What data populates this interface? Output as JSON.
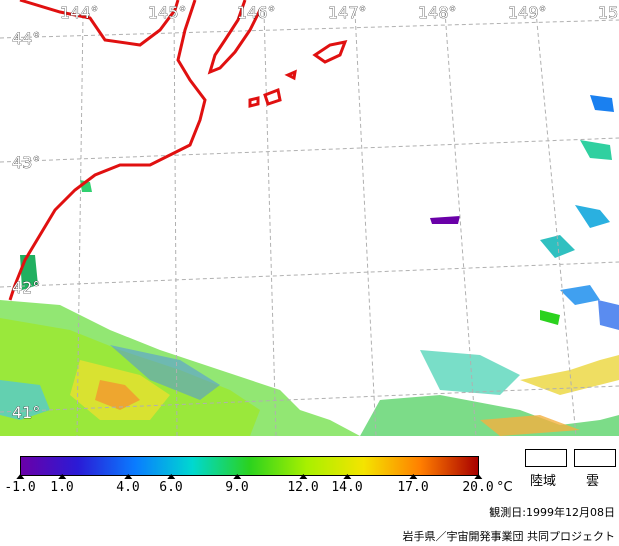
{
  "map": {
    "longitude_labels": [
      "144°",
      "145°",
      "146°",
      "147°",
      "148°",
      "149°",
      "15"
    ],
    "latitude_labels": [
      "44°",
      "43°",
      "42°",
      "41°"
    ]
  },
  "colorbar": {
    "ticks": [
      "-1.0",
      "1.0",
      "4.0",
      "6.0",
      "9.0",
      "12.0",
      "14.0",
      "17.0",
      "20.0"
    ],
    "unit": "°C",
    "colors": [
      "#6a00a8",
      "#2a1bd6",
      "#0a7cff",
      "#00d8d0",
      "#2bd21e",
      "#a8f000",
      "#f4e400",
      "#ff7e00",
      "#a80000"
    ]
  },
  "legend_boxes": {
    "land": "陸域",
    "cloud": "雲"
  },
  "observation_date": "観測日:1999年12月08日",
  "credit": "岩手県／宇宙開発事業団 共同プロジェクト"
}
